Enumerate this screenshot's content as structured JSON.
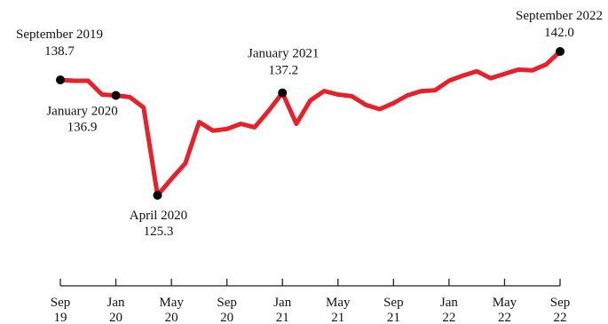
{
  "chart_data": {
    "type": "line",
    "title": "",
    "xlabel": "",
    "ylabel": "",
    "x_start": "2019-09",
    "x_end": "2022-09",
    "ylim": [
      124,
      143
    ],
    "grid": false,
    "legend": "none",
    "line_color": "#e8202a",
    "marker_color": "#000000",
    "x_ticks": [
      {
        "x": "2019-09",
        "line1": "Sep",
        "line2": "19"
      },
      {
        "x": "2020-01",
        "line1": "Jan",
        "line2": "20"
      },
      {
        "x": "2020-05",
        "line1": "May",
        "line2": "20"
      },
      {
        "x": "2020-09",
        "line1": "Sep",
        "line2": "20"
      },
      {
        "x": "2021-01",
        "line1": "Jan",
        "line2": "21"
      },
      {
        "x": "2021-05",
        "line1": "May",
        "line2": "21"
      },
      {
        "x": "2021-09",
        "line1": "Sep",
        "line2": "21"
      },
      {
        "x": "2022-01",
        "line1": "Jan",
        "line2": "22"
      },
      {
        "x": "2022-05",
        "line1": "May",
        "line2": "22"
      },
      {
        "x": "2022-09",
        "line1": "Sep",
        "line2": "22"
      }
    ],
    "series": [
      {
        "x": [
          "2019-09",
          "2019-10",
          "2019-11",
          "2019-12",
          "2020-01",
          "2020-02",
          "2020-03",
          "2020-04",
          "2020-05",
          "2020-06",
          "2020-07",
          "2020-08",
          "2020-09",
          "2020-10",
          "2020-11",
          "2020-12",
          "2021-01",
          "2021-02",
          "2021-03",
          "2021-04",
          "2021-05",
          "2021-06",
          "2021-07",
          "2021-08",
          "2021-09",
          "2021-10",
          "2021-11",
          "2021-12",
          "2022-01",
          "2022-02",
          "2022-03",
          "2022-04",
          "2022-05",
          "2022-06",
          "2022-07",
          "2022-08",
          "2022-09"
        ],
        "values": [
          138.7,
          138.6,
          138.6,
          137.0,
          136.9,
          136.7,
          135.5,
          125.3,
          127.2,
          129.0,
          133.8,
          132.8,
          133.0,
          133.6,
          133.2,
          135.1,
          137.2,
          133.6,
          136.3,
          137.4,
          137.0,
          136.8,
          135.8,
          135.3,
          136.0,
          136.9,
          137.4,
          137.5,
          138.6,
          139.2,
          139.7,
          138.9,
          139.4,
          139.9,
          139.8,
          140.5,
          142.0
        ]
      }
    ],
    "annotations": [
      {
        "x": "2019-09",
        "value": 138.7,
        "line1": "September 2019",
        "line2": "138.7"
      },
      {
        "x": "2020-01",
        "value": 136.9,
        "line1": "January 2020",
        "line2": "136.9"
      },
      {
        "x": "2020-04",
        "value": 125.3,
        "line1": "April 2020",
        "line2": "125.3"
      },
      {
        "x": "2021-01",
        "value": 137.2,
        "line1": "January 2021",
        "line2": "137.2"
      },
      {
        "x": "2022-09",
        "value": 142.0,
        "line1": "September 2022",
        "line2": "142.0"
      }
    ]
  }
}
